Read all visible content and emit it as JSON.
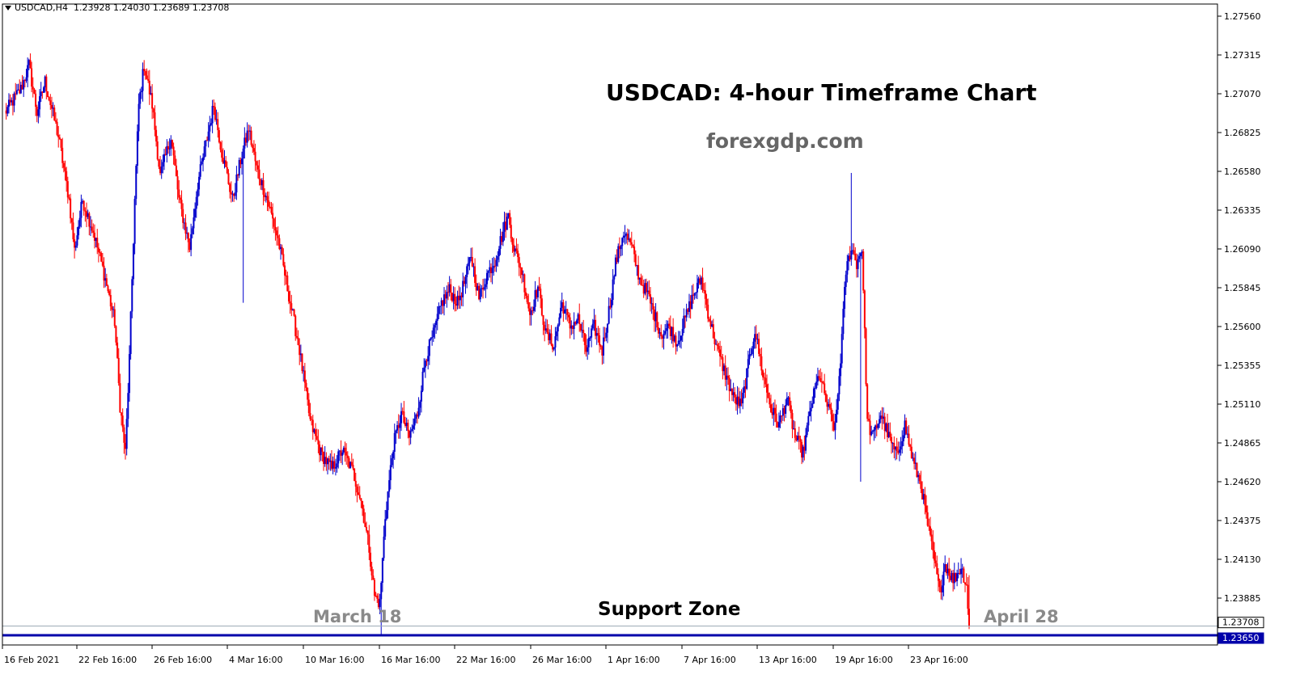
{
  "header": {
    "symbol": "USDCAD,H4",
    "ohlc": "1.23928 1.24030 1.23689 1.23708"
  },
  "annotations": {
    "title": "USDCAD: 4-hour Timeframe Chart",
    "subtitle": "forexgdp.com",
    "march_label": "March 18",
    "support_label": "Support Zone",
    "april_label": "April 28"
  },
  "colors": {
    "bull": "#0000cc",
    "bear": "#ff0000",
    "support_line": "#0000aa",
    "grid_line": "#9aa7b3",
    "background": "#ffffff"
  },
  "chart_data": {
    "type": "candlestick",
    "symbol": "USDCAD",
    "timeframe": "H4",
    "ylim": [
      1.235,
      1.277
    ],
    "y_ticks": [
      "1.27560",
      "1.27315",
      "1.27070",
      "1.26825",
      "1.26580",
      "1.26335",
      "1.26090",
      "1.25845",
      "1.25600",
      "1.25355",
      "1.25110",
      "1.24865",
      "1.24620",
      "1.24375",
      "1.24130",
      "1.23885"
    ],
    "x_ticks": [
      "16 Feb 2021",
      "22 Feb 16:00",
      "26 Feb 16:00",
      "4 Mar 16:00",
      "10 Mar 16:00",
      "16 Mar 16:00",
      "22 Mar 16:00",
      "26 Mar 16:00",
      "1 Apr 16:00",
      "7 Apr 16:00",
      "13 Apr 16:00",
      "19 Apr 16:00",
      "23 Apr 16:00"
    ],
    "price_tags": [
      {
        "value": 1.23708,
        "label": "1.23708",
        "style": "current"
      },
      {
        "value": 1.2365,
        "label": "1.23650",
        "style": "support"
      }
    ],
    "support_level": 1.2365,
    "path_points": [
      [
        0,
        1.2695
      ],
      [
        12,
        1.271
      ],
      [
        18,
        1.2725
      ],
      [
        24,
        1.2695
      ],
      [
        30,
        1.2715
      ],
      [
        40,
        1.268
      ],
      [
        48,
        1.264
      ],
      [
        52,
        1.2608
      ],
      [
        58,
        1.264
      ],
      [
        66,
        1.262
      ],
      [
        75,
        1.259
      ],
      [
        82,
        1.2563
      ],
      [
        86,
        1.251
      ],
      [
        90,
        1.248
      ],
      [
        93,
        1.254
      ],
      [
        97,
        1.264
      ],
      [
        100,
        1.27
      ],
      [
        104,
        1.2725
      ],
      [
        110,
        1.27
      ],
      [
        116,
        1.2655
      ],
      [
        124,
        1.268
      ],
      [
        130,
        1.264
      ],
      [
        138,
        1.261
      ],
      [
        144,
        1.265
      ],
      [
        150,
        1.2675
      ],
      [
        156,
        1.27
      ],
      [
        162,
        1.267
      ],
      [
        170,
        1.264
      ],
      [
        176,
        1.2665
      ],
      [
        182,
        1.2685
      ],
      [
        188,
        1.266
      ],
      [
        196,
        1.264
      ],
      [
        204,
        1.2615
      ],
      [
        212,
        1.258
      ],
      [
        220,
        1.2545
      ],
      [
        228,
        1.25
      ],
      [
        236,
        1.248
      ],
      [
        244,
        1.247
      ],
      [
        252,
        1.2482
      ],
      [
        260,
        1.2468
      ],
      [
        266,
        1.245
      ],
      [
        272,
        1.242
      ],
      [
        276,
        1.239
      ],
      [
        280,
        1.2385
      ],
      [
        284,
        1.244
      ],
      [
        290,
        1.2485
      ],
      [
        296,
        1.2505
      ],
      [
        302,
        1.249
      ],
      [
        308,
        1.2505
      ],
      [
        314,
        1.254
      ],
      [
        320,
        1.2555
      ],
      [
        326,
        1.2575
      ],
      [
        332,
        1.2583
      ],
      [
        338,
        1.2575
      ],
      [
        344,
        1.259
      ],
      [
        348,
        1.2605
      ],
      [
        354,
        1.2578
      ],
      [
        360,
        1.2593
      ],
      [
        366,
        1.2602
      ],
      [
        372,
        1.262
      ],
      [
        376,
        1.263
      ],
      [
        380,
        1.261
      ],
      [
        386,
        1.2595
      ],
      [
        392,
        1.2568
      ],
      [
        398,
        1.2585
      ],
      [
        404,
        1.2555
      ],
      [
        410,
        1.2548
      ],
      [
        416,
        1.2575
      ],
      [
        422,
        1.256
      ],
      [
        428,
        1.2565
      ],
      [
        434,
        1.2545
      ],
      [
        440,
        1.256
      ],
      [
        446,
        1.2545
      ],
      [
        452,
        1.2575
      ],
      [
        456,
        1.26
      ],
      [
        462,
        1.262
      ],
      [
        468,
        1.261
      ],
      [
        474,
        1.259
      ],
      [
        480,
        1.258
      ],
      [
        486,
        1.2565
      ],
      [
        490,
        1.2555
      ],
      [
        496,
        1.256
      ],
      [
        502,
        1.255
      ],
      [
        508,
        1.2565
      ],
      [
        514,
        1.258
      ],
      [
        520,
        1.259
      ],
      [
        526,
        1.2565
      ],
      [
        532,
        1.2545
      ],
      [
        538,
        1.253
      ],
      [
        544,
        1.2515
      ],
      [
        550,
        1.251
      ],
      [
        556,
        1.254
      ],
      [
        560,
        1.2558
      ],
      [
        566,
        1.253
      ],
      [
        572,
        1.2508
      ],
      [
        578,
        1.2498
      ],
      [
        584,
        1.2515
      ],
      [
        590,
        1.249
      ],
      [
        596,
        1.248
      ],
      [
        602,
        1.251
      ],
      [
        608,
        1.253
      ],
      [
        614,
        1.251
      ],
      [
        620,
        1.2495
      ],
      [
        624,
        1.254
      ],
      [
        628,
        1.2595
      ],
      [
        632,
        1.261
      ],
      [
        636,
        1.26
      ],
      [
        640,
        1.261
      ],
      [
        644,
        1.25
      ],
      [
        648,
        1.249
      ],
      [
        654,
        1.2505
      ],
      [
        660,
        1.249
      ],
      [
        666,
        1.2478
      ],
      [
        672,
        1.2498
      ],
      [
        678,
        1.2475
      ],
      [
        684,
        1.246
      ],
      [
        690,
        1.243
      ],
      [
        694,
        1.2412
      ],
      [
        698,
        1.2392
      ],
      [
        702,
        1.241
      ],
      [
        708,
        1.24
      ],
      [
        714,
        1.2408
      ],
      [
        718,
        1.2397
      ],
      [
        720,
        1.2371
      ]
    ],
    "annotations": [
      "USDCAD: 4-hour Timeframe Chart",
      "forexgdp.com",
      "March 18",
      "Support Zone",
      "April 28"
    ]
  }
}
